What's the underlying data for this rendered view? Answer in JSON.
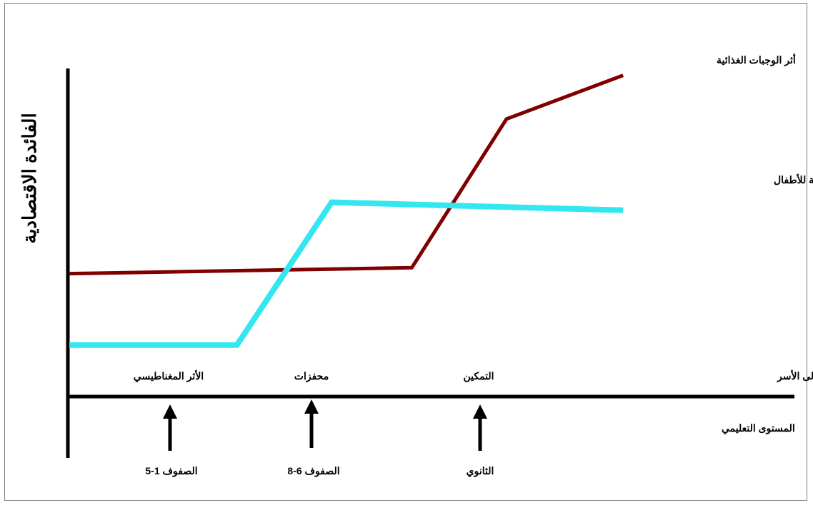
{
  "chart_data": {
    "type": "line",
    "title": "",
    "ylabel": "الفائدة الاقتصادية",
    "xlabel": "المستوى التعليمي",
    "x_categories": [
      "الصفوف 1-5",
      "الصفوف 6-8",
      "الثانوي"
    ],
    "flow_row_label": "التدفقات العائدة إلى الأسر",
    "flow_labels": [
      "الأثر المغناطيسي",
      "محفزات",
      "التمكين"
    ],
    "series": [
      {
        "name": "أثر الوجبات الغذائية",
        "color": "#800000",
        "points": [
          [
            0,
            3.1
          ],
          [
            4.7,
            3.25
          ],
          [
            6.0,
            7.0
          ],
          [
            7.6,
            8.1
          ]
        ]
      },
      {
        "name": "تكاليف الفرص البديلة للأطفال",
        "color": "#33e6f0",
        "points": [
          [
            0,
            1.3
          ],
          [
            2.3,
            1.3
          ],
          [
            3.6,
            4.9
          ],
          [
            7.6,
            4.7
          ]
        ]
      }
    ],
    "xlim": [
      0,
      10
    ],
    "ylim": [
      0,
      10
    ],
    "grid": false,
    "legend": "inline-right"
  }
}
